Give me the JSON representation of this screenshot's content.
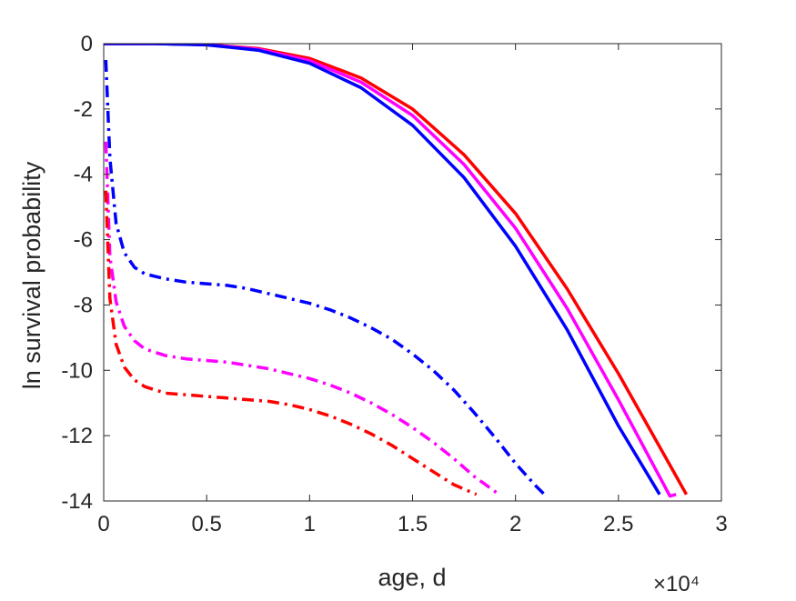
{
  "chart_data": {
    "type": "line",
    "title": "",
    "xlabel": "age, d",
    "ylabel": "ln survival probability",
    "x_multiplier": "×10⁴",
    "xlim": [
      0,
      3
    ],
    "ylim": [
      -14,
      0
    ],
    "xticks": [
      "0",
      "0.5",
      "1",
      "1.5",
      "2",
      "2.5",
      "3"
    ],
    "yticks": [
      "0",
      "-2",
      "-4",
      "-6",
      "-8",
      "-10",
      "-12",
      "-14"
    ],
    "grid": false,
    "legend": "none",
    "series": [
      {
        "color": "#ff0000",
        "style": "solid",
        "x": [
          0,
          0.25,
          0.5,
          0.75,
          1.0,
          1.25,
          1.5,
          1.75,
          2.0,
          2.25,
          2.5,
          2.75,
          2.83
        ],
        "y": [
          0,
          0,
          -0.03,
          -0.15,
          -0.45,
          -1.05,
          -2.0,
          -3.4,
          -5.2,
          -7.5,
          -10.1,
          -12.9,
          -13.8
        ]
      },
      {
        "color": "#ff00ff",
        "style": "solid",
        "x": [
          0,
          0.25,
          0.5,
          0.75,
          1.0,
          1.25,
          1.5,
          1.75,
          2.0,
          2.25,
          2.5,
          2.75,
          2.78
        ],
        "y": [
          0,
          0,
          -0.03,
          -0.17,
          -0.52,
          -1.18,
          -2.2,
          -3.7,
          -5.65,
          -8.1,
          -10.9,
          -13.85,
          -13.8
        ]
      },
      {
        "color": "#0000ff",
        "style": "solid",
        "x": [
          0,
          0.25,
          0.5,
          0.75,
          1.0,
          1.25,
          1.5,
          1.75,
          2.0,
          2.25,
          2.5,
          2.7
        ],
        "y": [
          0,
          0,
          -0.04,
          -0.2,
          -0.6,
          -1.35,
          -2.5,
          -4.1,
          -6.2,
          -8.75,
          -11.7,
          -13.8
        ]
      },
      {
        "color": "#0000ff",
        "style": "dashdot",
        "x": [
          0.01,
          0.03,
          0.06,
          0.1,
          0.15,
          0.2,
          0.3,
          0.4,
          0.5,
          0.6,
          0.7,
          0.8,
          0.9,
          1.0,
          1.1,
          1.2,
          1.3,
          1.4,
          1.5,
          1.6,
          1.7,
          1.8,
          1.9,
          2.0,
          2.1,
          2.14
        ],
        "y": [
          -0.5,
          -3.5,
          -5.5,
          -6.4,
          -6.85,
          -7.05,
          -7.2,
          -7.3,
          -7.35,
          -7.4,
          -7.5,
          -7.65,
          -7.8,
          -7.95,
          -8.15,
          -8.4,
          -8.7,
          -9.05,
          -9.5,
          -10.0,
          -10.6,
          -11.3,
          -12.05,
          -12.85,
          -13.55,
          -13.8
        ]
      },
      {
        "color": "#ff00ff",
        "style": "dashdot",
        "x": [
          0.01,
          0.03,
          0.06,
          0.1,
          0.15,
          0.2,
          0.3,
          0.4,
          0.5,
          0.6,
          0.7,
          0.8,
          0.9,
          1.0,
          1.1,
          1.2,
          1.3,
          1.4,
          1.5,
          1.6,
          1.7,
          1.8,
          1.92
        ],
        "y": [
          -3.0,
          -6.5,
          -7.9,
          -8.65,
          -9.1,
          -9.35,
          -9.55,
          -9.65,
          -9.7,
          -9.75,
          -9.85,
          -9.95,
          -10.1,
          -10.25,
          -10.45,
          -10.7,
          -11.0,
          -11.35,
          -11.75,
          -12.2,
          -12.7,
          -13.25,
          -13.8
        ]
      },
      {
        "color": "#ff0000",
        "style": "dashdot",
        "x": [
          0.01,
          0.03,
          0.06,
          0.1,
          0.15,
          0.2,
          0.3,
          0.4,
          0.5,
          0.6,
          0.7,
          0.8,
          0.9,
          1.0,
          1.1,
          1.2,
          1.3,
          1.4,
          1.5,
          1.6,
          1.7,
          1.81
        ],
        "y": [
          -4.5,
          -7.8,
          -9.2,
          -9.9,
          -10.3,
          -10.5,
          -10.7,
          -10.75,
          -10.8,
          -10.85,
          -10.9,
          -10.95,
          -11.05,
          -11.2,
          -11.4,
          -11.65,
          -11.95,
          -12.3,
          -12.7,
          -13.1,
          -13.5,
          -13.8
        ]
      }
    ]
  }
}
